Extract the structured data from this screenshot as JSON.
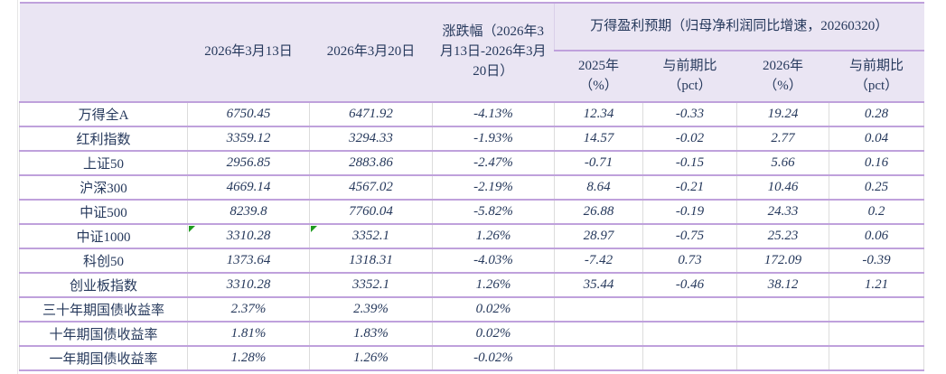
{
  "colors": {
    "text": "#26395C",
    "separator_purple": "#BFA1DC",
    "gridline_gray": "#DCDCDC",
    "header_background": "#EAE5F3",
    "error_indicator_green": "#1F9B1F"
  },
  "table": {
    "header": {
      "date_col_1": "2026年3月13日",
      "date_col_2": "2026年3月20日",
      "change_col": "涨跌幅（2026年3月13日-2026年3月20日）",
      "group_title": "万得盈利预期（归母净利润同比增速，20260320）",
      "sub_columns": [
        {
          "top": "2025年",
          "bottom": "（%）"
        },
        {
          "top": "与前期比",
          "bottom": "（pct）"
        },
        {
          "top": "2026年",
          "bottom": "（%）"
        },
        {
          "top": "与前期比",
          "bottom": "（pct）"
        }
      ]
    },
    "rows": [
      {
        "label": "万得全A",
        "values": [
          "6750.45",
          "6471.92",
          "-4.13%",
          "12.34",
          "-0.33",
          "19.24",
          "0.28"
        ]
      },
      {
        "label": "红利指数",
        "values": [
          "3359.12",
          "3294.33",
          "-1.93%",
          "14.57",
          "-0.02",
          "2.77",
          "0.04"
        ]
      },
      {
        "label": "上证50",
        "values": [
          "2956.85",
          "2883.86",
          "-2.47%",
          "-0.71",
          "-0.15",
          "5.66",
          "0.16"
        ]
      },
      {
        "label": "沪深300",
        "values": [
          "4669.14",
          "4567.02",
          "-2.19%",
          "8.64",
          "-0.21",
          "10.46",
          "0.25"
        ]
      },
      {
        "label": "中证500",
        "values": [
          "8239.8",
          "7760.04",
          "-5.82%",
          "26.88",
          "-0.19",
          "24.33",
          "0.2"
        ]
      },
      {
        "label": "中证1000",
        "values": [
          "3310.28",
          "3352.1",
          "1.26%",
          "28.97",
          "-0.75",
          "25.23",
          "0.06"
        ],
        "markers": [
          1,
          2
        ]
      },
      {
        "label": "科创50",
        "values": [
          "1373.64",
          "1318.31",
          "-4.03%",
          "-7.42",
          "0.73",
          "172.09",
          "-0.39"
        ]
      },
      {
        "label": "创业板指数",
        "values": [
          "3310.28",
          "3352.1",
          "1.26%",
          "35.44",
          "-0.46",
          "38.12",
          "1.21"
        ]
      },
      {
        "label": "三十年期国债收益率",
        "values": [
          "2.37%",
          "2.39%",
          "0.02%",
          "",
          "",
          "",
          ""
        ]
      },
      {
        "label": "十年期国债收益率",
        "values": [
          "1.81%",
          "1.83%",
          "0.02%",
          "",
          "",
          "",
          ""
        ]
      },
      {
        "label": "一年期国债收益率",
        "values": [
          "1.28%",
          "1.26%",
          "-0.02%",
          "",
          "",
          "",
          ""
        ]
      }
    ]
  }
}
